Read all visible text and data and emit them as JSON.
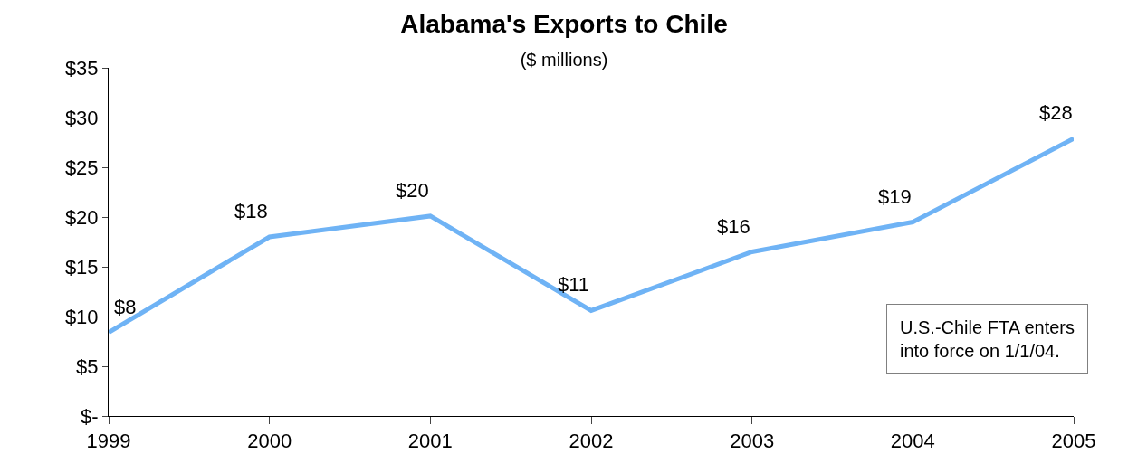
{
  "chart_data": {
    "type": "line",
    "title": "Alabama's Exports to Chile",
    "subtitle": "($ millions)",
    "categories": [
      "1999",
      "2000",
      "2001",
      "2002",
      "2003",
      "2004",
      "2005"
    ],
    "series": [
      {
        "color": "#6fb3f5",
        "values": [
          8.4,
          18,
          20.1,
          10.6,
          16.5,
          19.5,
          27.9
        ],
        "value_labels": [
          "$8",
          "$18",
          "$20",
          "$11",
          "$16",
          "$19",
          "$28"
        ]
      }
    ],
    "ylim": [
      0,
      35
    ],
    "yticks": [
      {
        "value": 0,
        "label": "$-"
      },
      {
        "value": 5,
        "label": "$5"
      },
      {
        "value": 10,
        "label": "$10"
      },
      {
        "value": 15,
        "label": "$15"
      },
      {
        "value": 20,
        "label": "$20"
      },
      {
        "value": 25,
        "label": "$25"
      },
      {
        "value": 30,
        "label": "$30"
      },
      {
        "value": 35,
        "label": "$35"
      }
    ],
    "annotations": [
      "U.S.-Chile FTA enters\ninto force on 1/1/04."
    ],
    "marker": "none",
    "line_style": "solid"
  }
}
